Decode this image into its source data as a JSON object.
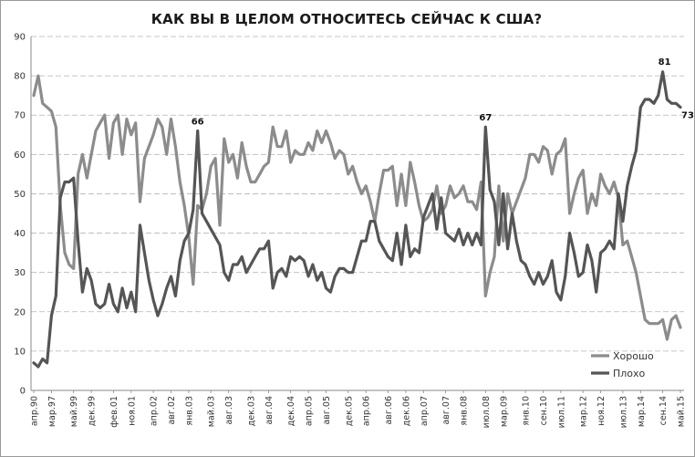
{
  "chart_data": {
    "type": "line",
    "title": "КАК ВЫ В ЦЕЛОМ ОТНОСИТЕСЬ СЕЙЧАС К США?",
    "xlabel": "",
    "ylabel": "",
    "ylim": [
      0,
      90
    ],
    "yticks": [
      "0",
      "10",
      "20",
      "30",
      "40",
      "50",
      "60",
      "70",
      "80",
      "90"
    ],
    "grid": "dashed horizontal",
    "legend": "lower-right",
    "x_tick_labels": [
      "апр.90",
      "мар.97",
      "май.99",
      "дек.99",
      "фев.01",
      "ноя.01",
      "апр.02",
      "авг.02",
      "янв.03",
      "май.03",
      "авг.03",
      "дек.03",
      "авг.04",
      "дек.04",
      "апр.05",
      "авг.05",
      "дек.05",
      "апр.06",
      "авг.06",
      "дек.06",
      "апр.07",
      "авг.07",
      "янв.08",
      "июл.08",
      "мар.09",
      "янв.10",
      "сен.10",
      "июл.11",
      "мар.12",
      "ноя.12",
      "июл.13",
      "мар.14",
      "сен.14",
      "май.15"
    ],
    "series": [
      {
        "name": "Хорошо",
        "color": "#8c8c8c",
        "values": [
          75,
          80,
          73,
          72,
          71,
          67,
          47,
          35,
          32,
          31,
          55,
          60,
          54,
          60,
          66,
          68,
          70,
          59,
          68,
          70,
          60,
          69,
          65,
          68,
          48,
          59,
          62,
          65,
          69,
          67,
          60,
          69,
          62,
          53,
          47,
          39,
          27,
          47,
          46,
          50,
          57,
          59,
          42,
          64,
          58,
          60,
          54,
          63,
          57,
          53,
          53,
          55,
          57,
          58,
          67,
          62,
          62,
          66,
          58,
          61,
          60,
          60,
          63,
          61,
          66,
          63,
          66,
          63,
          59,
          61,
          60,
          55,
          57,
          53,
          50,
          52,
          48,
          43,
          50,
          56,
          56,
          57,
          47,
          55,
          47,
          58,
          53,
          47,
          43,
          44,
          46,
          52,
          45,
          47,
          52,
          49,
          50,
          52,
          48,
          48,
          46,
          53,
          24,
          30,
          34,
          52,
          38,
          50,
          45,
          48,
          51,
          54,
          60,
          60,
          58,
          62,
          61,
          55,
          60,
          61,
          64,
          45,
          50,
          54,
          56,
          45,
          50,
          47,
          55,
          52,
          50,
          53,
          49,
          37,
          38,
          34,
          30,
          24,
          18,
          17,
          17,
          17,
          18,
          13,
          18,
          19,
          16
        ],
        "labels": []
      },
      {
        "name": "Плохо",
        "color": "#555555",
        "values": [
          7,
          6,
          8,
          7,
          19,
          24,
          49,
          53,
          53,
          54,
          38,
          25,
          31,
          28,
          22,
          21,
          22,
          27,
          22,
          20,
          26,
          21,
          25,
          20,
          42,
          35,
          28,
          23,
          19,
          22,
          26,
          29,
          24,
          33,
          38,
          40,
          46,
          66,
          45,
          43,
          41,
          39,
          37,
          30,
          28,
          32,
          32,
          34,
          30,
          32,
          34,
          36,
          36,
          38,
          26,
          30,
          31,
          29,
          34,
          33,
          34,
          33,
          29,
          32,
          28,
          30,
          26,
          25,
          29,
          31,
          31,
          30,
          30,
          34,
          38,
          38,
          43,
          43,
          38,
          36,
          34,
          33,
          40,
          32,
          42,
          34,
          36,
          35,
          44,
          47,
          50,
          41,
          49,
          40,
          39,
          38,
          41,
          37,
          40,
          37,
          40,
          37,
          67,
          51,
          48,
          37,
          50,
          36,
          45,
          38,
          33,
          32,
          29,
          27,
          30,
          27,
          29,
          33,
          25,
          23,
          29,
          40,
          35,
          29,
          30,
          37,
          33,
          25,
          35,
          36,
          38,
          36,
          50,
          43,
          52,
          57,
          61,
          72,
          74,
          74,
          73,
          75,
          81,
          74,
          73,
          73,
          72
        ],
        "labels": []
      }
    ],
    "data_labels": [
      "66",
      "67",
      "81",
      "73"
    ]
  }
}
